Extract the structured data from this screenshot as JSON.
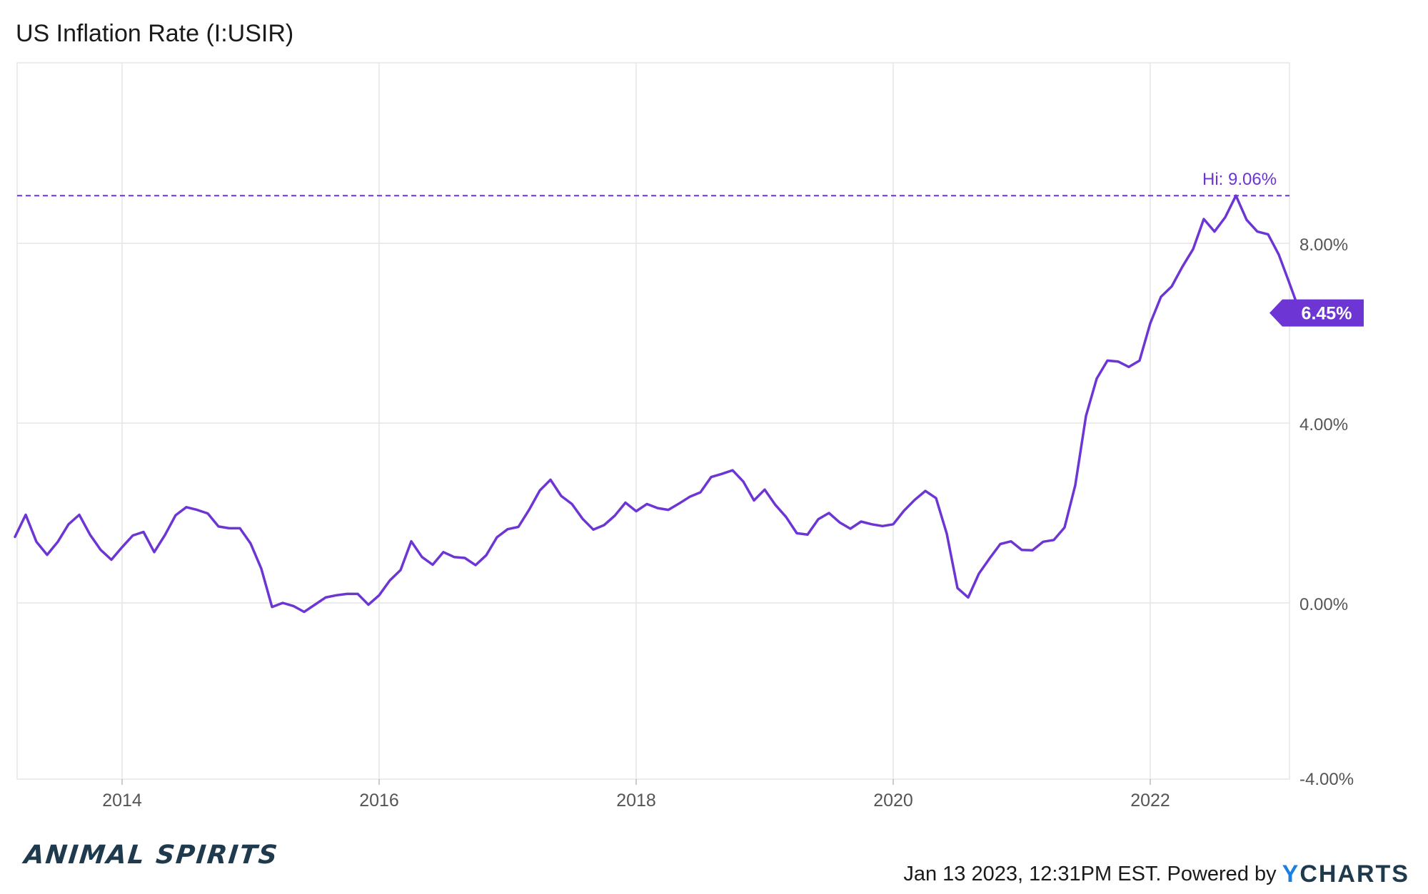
{
  "title": "US Inflation Rate (I:USIR)",
  "footer": {
    "timestamp": "Jan 13 2023, 12:31PM EST.",
    "powered_by": "Powered by",
    "logo_y": "Y",
    "logo_rest": "CHARTS",
    "brand": "ANIMAL SPIRITS"
  },
  "colors": {
    "series": "#6c35d4",
    "grid": "#e6e6e6",
    "axis_text": "#555555",
    "last_badge_bg": "#6c35d4",
    "logo_accent": "#1c7fe0",
    "logo_dark": "#1f3a4d"
  },
  "chart_data": {
    "type": "line",
    "title": "US Inflation Rate (I:USIR)",
    "x_axis": {
      "ticks": [
        "2014",
        "2016",
        "2018",
        "2020",
        "2022"
      ],
      "range": [
        "2013-03",
        "2022-12"
      ]
    },
    "y_axis": {
      "ticks": [
        "-4.00%",
        "0.00%",
        "4.00%",
        "8.00%"
      ],
      "ylim": [
        -4,
        12
      ],
      "position": "right"
    },
    "grid": true,
    "high": {
      "label": "Hi: 9.06%",
      "value": 9.06,
      "date": "2022-06"
    },
    "last": {
      "label": "6.45%",
      "value": 6.45,
      "date": "2022-12"
    },
    "series": [
      {
        "start": "2013-03",
        "frequency": "monthly",
        "values": [
          1.47,
          1.96,
          1.36,
          1.07,
          1.36,
          1.75,
          1.96,
          1.52,
          1.18,
          0.96,
          1.24,
          1.5,
          1.58,
          1.13,
          1.51,
          1.95,
          2.13,
          2.07,
          1.99,
          1.7,
          1.66,
          1.66,
          1.32,
          0.76,
          -0.09,
          0.0,
          -0.07,
          -0.2,
          -0.04,
          0.12,
          0.17,
          0.2,
          0.2,
          -0.04,
          0.17,
          0.5,
          0.73,
          1.37,
          1.02,
          0.85,
          1.13,
          1.02,
          1.0,
          0.84,
          1.06,
          1.46,
          1.64,
          1.69,
          2.07,
          2.5,
          2.74,
          2.38,
          2.2,
          1.87,
          1.63,
          1.73,
          1.94,
          2.23,
          2.04,
          2.2,
          2.11,
          2.07,
          2.21,
          2.36,
          2.46,
          2.8,
          2.87,
          2.95,
          2.7,
          2.28,
          2.52,
          2.18,
          1.91,
          1.55,
          1.52,
          1.86,
          2.0,
          1.79,
          1.65,
          1.81,
          1.75,
          1.71,
          1.75,
          2.05,
          2.29,
          2.49,
          2.33,
          1.54,
          0.33,
          0.12,
          0.65,
          0.99,
          1.31,
          1.37,
          1.18,
          1.17,
          1.36,
          1.4,
          1.68,
          2.62,
          4.16,
          4.99,
          5.39,
          5.37,
          5.25,
          5.39,
          6.22,
          6.81,
          7.04,
          7.48,
          7.87,
          8.54,
          8.26,
          8.58,
          9.06,
          8.52,
          8.26,
          8.2,
          7.75,
          7.11,
          6.45
        ]
      }
    ]
  }
}
